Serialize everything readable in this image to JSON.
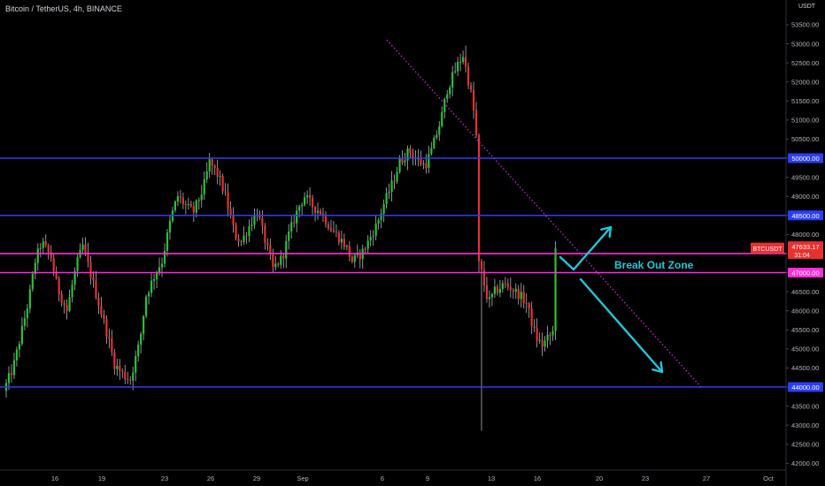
{
  "header": {
    "title": "Bitcoin / TetherUS, 4h, BINANCE",
    "currency": "USDT"
  },
  "chart_data": {
    "type": "candlestick",
    "ylim": [
      42000,
      54000
    ],
    "y_ticks": [
      42000,
      42500,
      43000,
      43500,
      44000,
      44500,
      45000,
      45500,
      46000,
      46500,
      47000,
      47500,
      48000,
      48500,
      49000,
      49500,
      50000,
      50500,
      51000,
      51500,
      52000,
      52500,
      53000,
      53500
    ],
    "x_tick_labels": [
      "16",
      "19",
      "23",
      "26",
      "29",
      "Sep",
      "6",
      "9",
      "13",
      "16",
      "20",
      "23",
      "27",
      "Oct"
    ],
    "colors": {
      "up": "#26c431",
      "down": "#e8302f",
      "wick": "#b2b5be",
      "blue_level": "#2a3dff",
      "magenta_level": "#ff2bd6",
      "trendline": "#c82bd6",
      "arrow": "#1fc8d9",
      "price_label_bg": "#e8302f"
    },
    "horizontal_levels": [
      {
        "value": 50000,
        "label": "50000.00",
        "color": "blue"
      },
      {
        "value": 48500,
        "label": "48500.00",
        "color": "blue"
      },
      {
        "value": 47500,
        "label": "47500.00",
        "color": "magenta"
      },
      {
        "value": 47000,
        "label": "47000.00",
        "color": "magenta"
      },
      {
        "value": 44000,
        "label": "44000.00",
        "color": "blue"
      }
    ],
    "trendline": {
      "from": {
        "x": "Sep 7",
        "y": 52950
      },
      "to": {
        "x": "Sep 27",
        "y": 43950
      },
      "style": "dotted"
    },
    "annotation": {
      "text": "Break Out Zone",
      "color": "#1fc8d9"
    },
    "arrows": [
      {
        "direction": "up",
        "from": {
          "x": "Sep 17",
          "y": 47100
        },
        "to": {
          "x": "Sep 19",
          "y": 48250
        }
      },
      {
        "direction": "down",
        "from": {
          "x": "Sep 17",
          "y": 46900
        },
        "to": {
          "x": "Sep 22",
          "y": 44400
        }
      }
    ],
    "current_price": {
      "symbol": "BTCUSDT",
      "price": "47633.17",
      "countdown": "31:04"
    },
    "price_path": [
      {
        "x": 0.0,
        "y": 43900
      },
      {
        "x": 0.6,
        "y": 44500
      },
      {
        "x": 1.0,
        "y": 45200
      },
      {
        "x": 1.6,
        "y": 46300
      },
      {
        "x": 2.0,
        "y": 47300
      },
      {
        "x": 2.4,
        "y": 47800
      },
      {
        "x": 3.0,
        "y": 47400
      },
      {
        "x": 3.4,
        "y": 46600
      },
      {
        "x": 4.0,
        "y": 46000
      },
      {
        "x": 4.6,
        "y": 47200
      },
      {
        "x": 5.0,
        "y": 47700
      },
      {
        "x": 5.6,
        "y": 46800
      },
      {
        "x": 6.0,
        "y": 46200
      },
      {
        "x": 6.6,
        "y": 45300
      },
      {
        "x": 7.0,
        "y": 44600
      },
      {
        "x": 7.6,
        "y": 44300
      },
      {
        "x": 8.0,
        "y": 44200
      },
      {
        "x": 8.6,
        "y": 45200
      },
      {
        "x": 9.0,
        "y": 46400
      },
      {
        "x": 9.6,
        "y": 47000
      },
      {
        "x": 10.0,
        "y": 47300
      },
      {
        "x": 10.6,
        "y": 48500
      },
      {
        "x": 11.0,
        "y": 49000
      },
      {
        "x": 11.6,
        "y": 48700
      },
      {
        "x": 12.0,
        "y": 48600
      },
      {
        "x": 12.6,
        "y": 49200
      },
      {
        "x": 13.0,
        "y": 49900
      },
      {
        "x": 13.6,
        "y": 49500
      },
      {
        "x": 14.0,
        "y": 49000
      },
      {
        "x": 14.6,
        "y": 48000
      },
      {
        "x": 15.0,
        "y": 47800
      },
      {
        "x": 15.6,
        "y": 48300
      },
      {
        "x": 16.0,
        "y": 48600
      },
      {
        "x": 16.6,
        "y": 47700
      },
      {
        "x": 17.0,
        "y": 47100
      },
      {
        "x": 17.6,
        "y": 47400
      },
      {
        "x": 18.0,
        "y": 48000
      },
      {
        "x": 18.6,
        "y": 48700
      },
      {
        "x": 19.0,
        "y": 49000
      },
      {
        "x": 19.6,
        "y": 48700
      },
      {
        "x": 20.0,
        "y": 48600
      },
      {
        "x": 20.6,
        "y": 48200
      },
      {
        "x": 21.0,
        "y": 48000
      },
      {
        "x": 21.6,
        "y": 47700
      },
      {
        "x": 22.0,
        "y": 47300
      },
      {
        "x": 22.6,
        "y": 47500
      },
      {
        "x": 23.0,
        "y": 47800
      },
      {
        "x": 23.6,
        "y": 48300
      },
      {
        "x": 24.0,
        "y": 48800
      },
      {
        "x": 24.6,
        "y": 49400
      },
      {
        "x": 25.0,
        "y": 49900
      },
      {
        "x": 25.6,
        "y": 50200
      },
      {
        "x": 26.0,
        "y": 50000
      },
      {
        "x": 26.6,
        "y": 49800
      },
      {
        "x": 27.0,
        "y": 50200
      },
      {
        "x": 27.6,
        "y": 51000
      },
      {
        "x": 28.0,
        "y": 51800
      },
      {
        "x": 28.6,
        "y": 52400
      },
      {
        "x": 29.0,
        "y": 52700
      },
      {
        "x": 29.6,
        "y": 51500
      },
      {
        "x": 29.85,
        "y": 50500
      },
      {
        "x": 30.0,
        "y": 47300
      },
      {
        "x": 30.6,
        "y": 46200
      },
      {
        "x": 31.0,
        "y": 46500
      },
      {
        "x": 31.6,
        "y": 46700
      },
      {
        "x": 32.0,
        "y": 46600
      },
      {
        "x": 32.6,
        "y": 46400
      },
      {
        "x": 33.0,
        "y": 46200
      },
      {
        "x": 33.6,
        "y": 45300
      },
      {
        "x": 34.0,
        "y": 45100
      },
      {
        "x": 34.6,
        "y": 45400
      },
      {
        "x": 35.0,
        "y": 45600
      },
      {
        "x": 35.6,
        "y": 45900
      },
      {
        "x": 36.0,
        "y": 45800
      },
      {
        "x": 36.6,
        "y": 44900
      },
      {
        "x": 37.0,
        "y": 44700
      },
      {
        "x": 37.6,
        "y": 45500
      },
      {
        "x": 38.0,
        "y": 46200
      },
      {
        "x": 38.6,
        "y": 47200
      },
      {
        "x": 39.0,
        "y": 47900
      },
      {
        "x": 39.6,
        "y": 48400
      },
      {
        "x": 40.0,
        "y": 48000
      },
      {
        "x": 40.6,
        "y": 47600
      },
      {
        "x": 40.9,
        "y": 47633
      }
    ],
    "x_start": "Aug 13 12:00",
    "candles_per_day": 6,
    "candle_count": 209
  }
}
